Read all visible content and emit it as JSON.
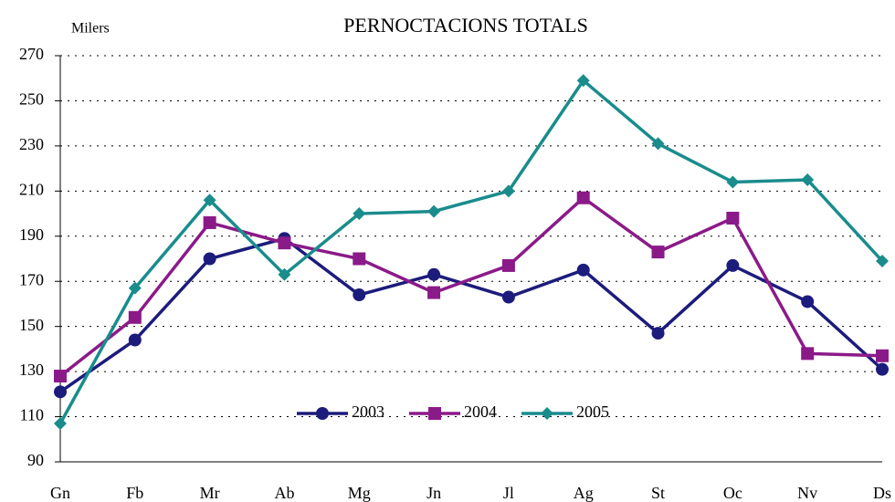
{
  "chart_data": {
    "type": "line",
    "title": "PERNOCTACIONS TOTALS",
    "ylabel": "Milers",
    "categories": [
      "Gn",
      "Fb",
      "Mr",
      "Ab",
      "Mg",
      "Jn",
      "Jl",
      "Ag",
      "St",
      "Oc",
      "Nv",
      "Ds"
    ],
    "series": [
      {
        "name": "2003",
        "color": "#1c1c7c",
        "marker": "circle",
        "values": [
          121,
          144,
          180,
          189,
          164,
          173,
          163,
          175,
          147,
          177,
          161,
          131
        ]
      },
      {
        "name": "2004",
        "color": "#8b1a89",
        "marker": "square",
        "values": [
          128,
          154,
          196,
          187,
          180,
          165,
          177,
          207,
          183,
          198,
          138,
          137
        ]
      },
      {
        "name": "2005",
        "color": "#1a8c8c",
        "marker": "diamond",
        "values": [
          107,
          167,
          206,
          173,
          200,
          201,
          210,
          259,
          231,
          214,
          215,
          179
        ]
      }
    ],
    "ylim": [
      90,
      270
    ],
    "yticks": [
      90,
      110,
      130,
      150,
      170,
      190,
      210,
      230,
      250,
      270
    ],
    "grid": true,
    "legend": "bottom"
  }
}
